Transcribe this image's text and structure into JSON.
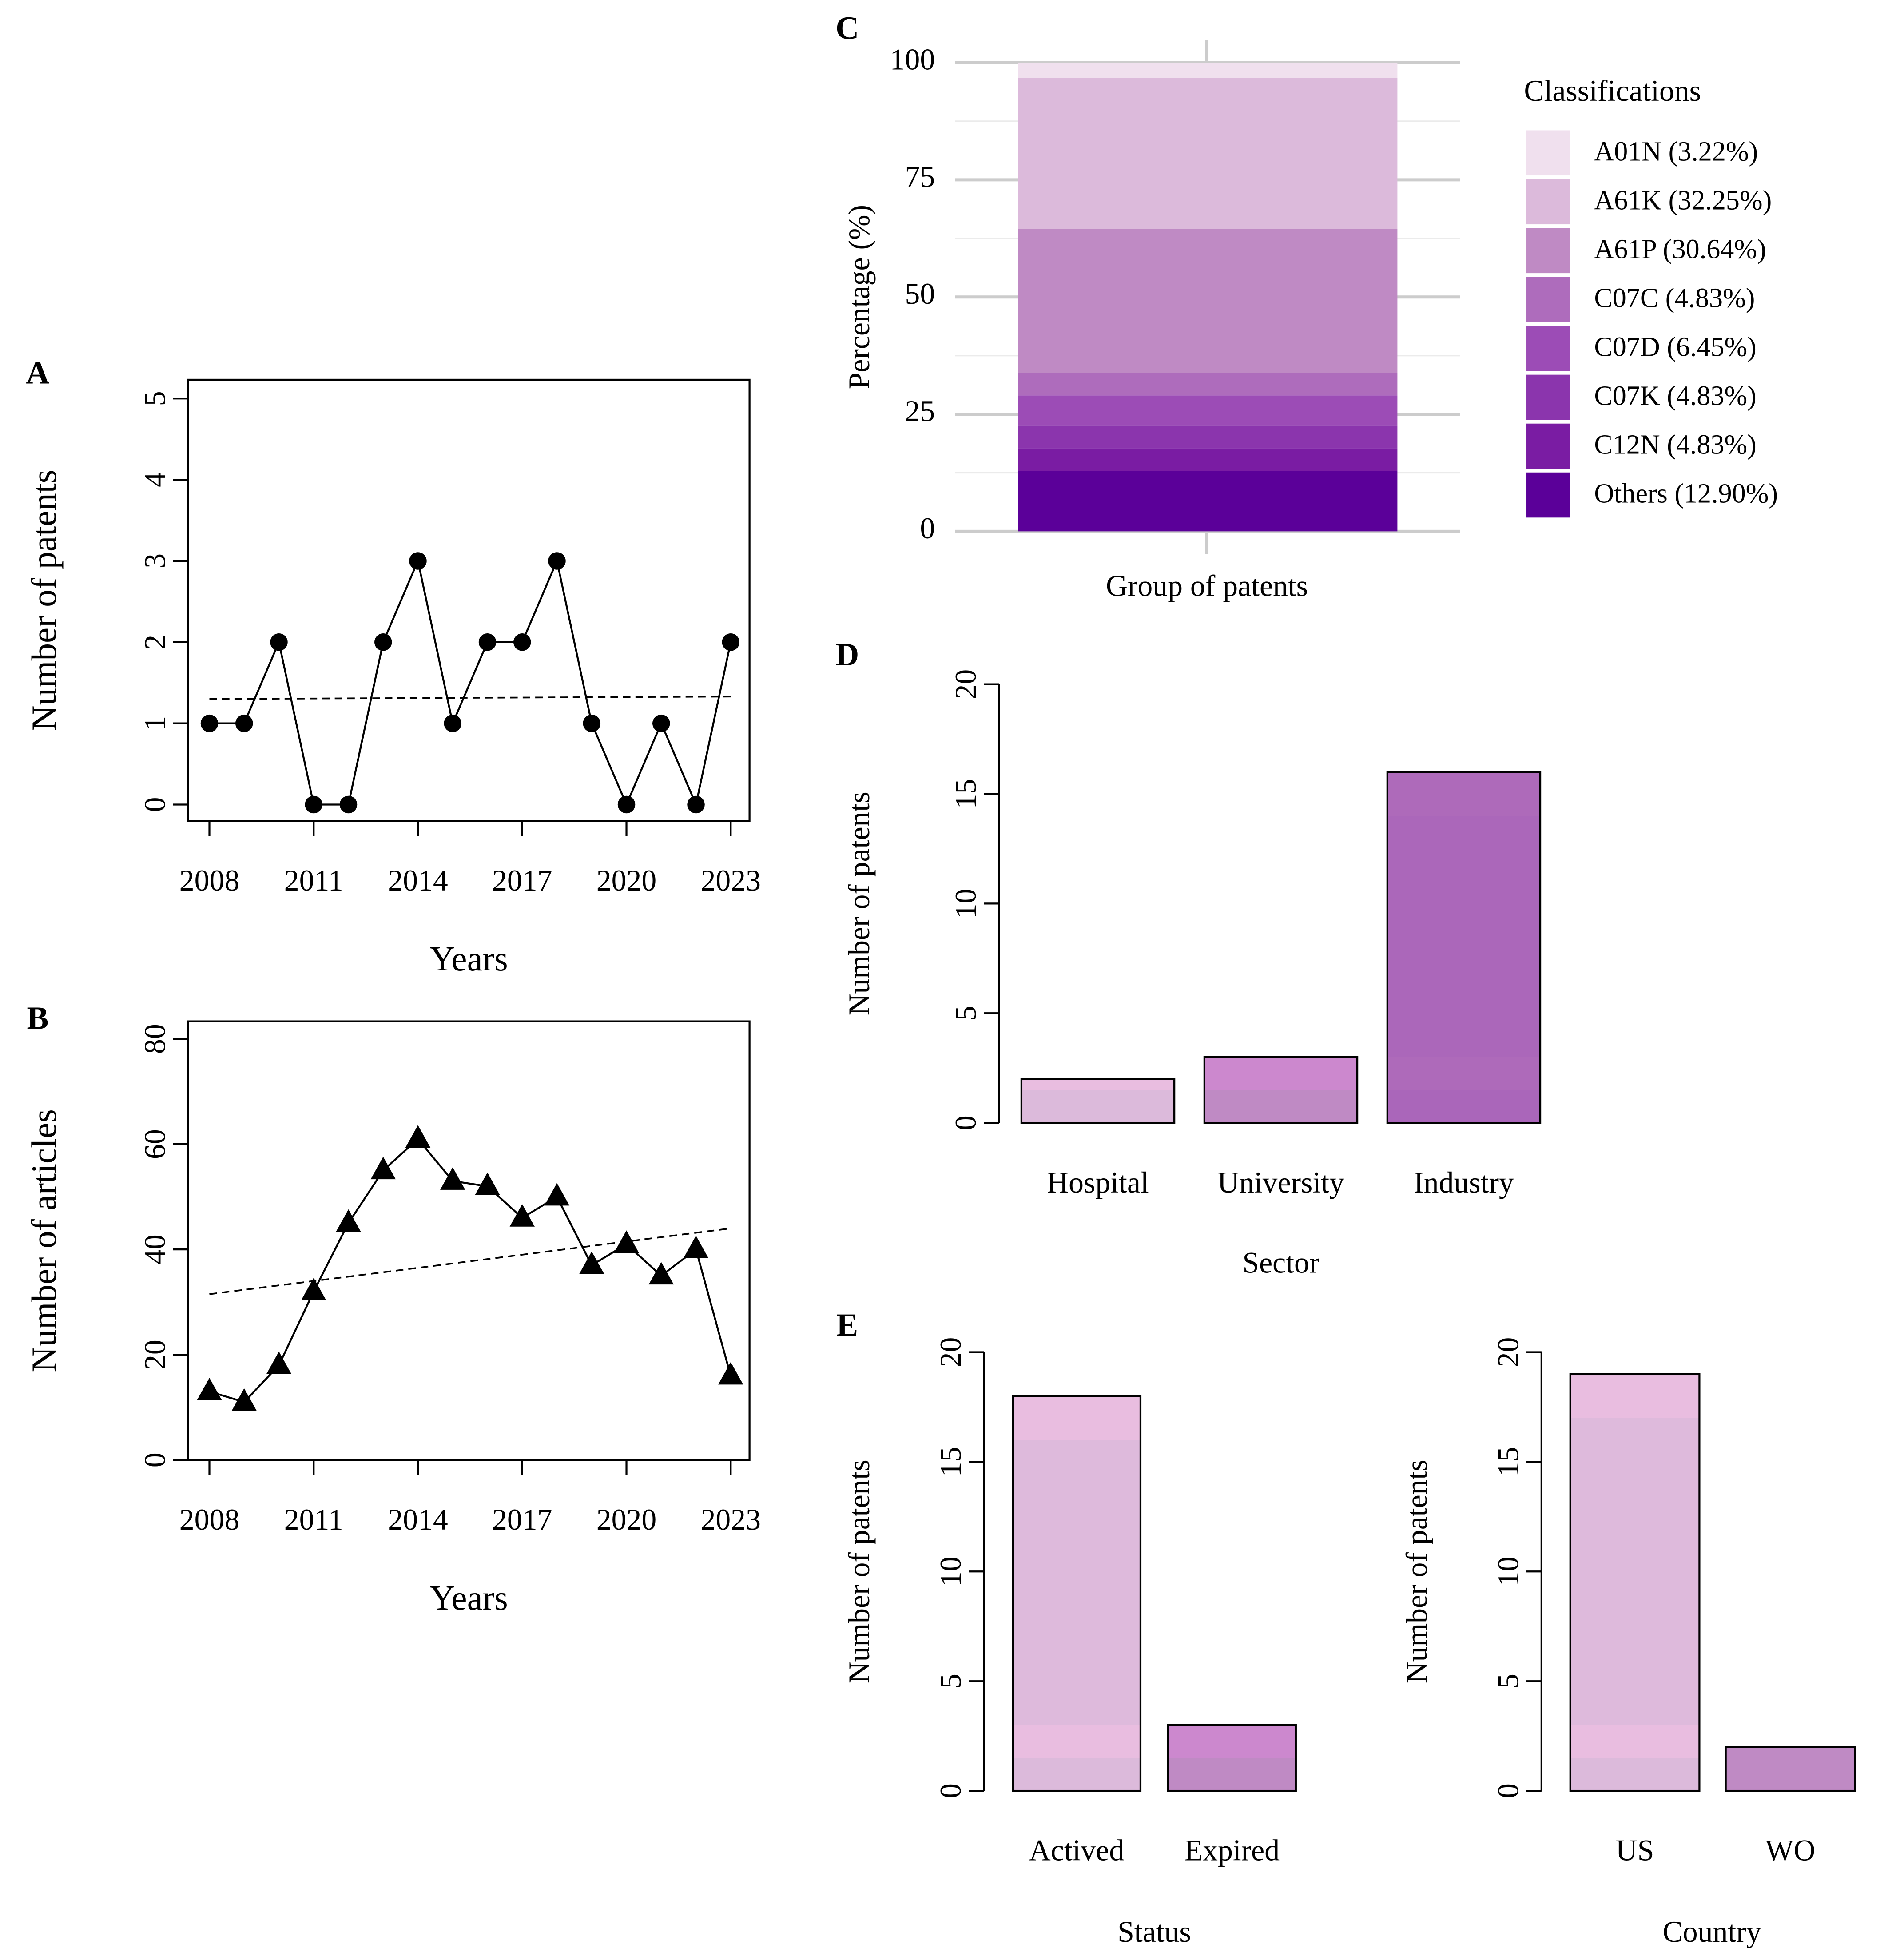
{
  "chart_data": [
    {
      "panel": "A",
      "type": "line",
      "x": [
        2008,
        2009,
        2010,
        2011,
        2012,
        2013,
        2014,
        2015,
        2016,
        2017,
        2018,
        2019,
        2020,
        2021,
        2022,
        2023
      ],
      "values": [
        1,
        1,
        2,
        0,
        0,
        2,
        3,
        1,
        2,
        2,
        3,
        1,
        0,
        1,
        0,
        2
      ],
      "trend": [
        1.3,
        1.33
      ],
      "marker": "circle",
      "xlabel": "Years",
      "ylabel": "Number of patents",
      "ylim": [
        0,
        5
      ],
      "yticks": [
        "0",
        "1",
        "2",
        "3",
        "4",
        "5"
      ],
      "xticks": [
        "2008",
        "2011",
        "2014",
        "2017",
        "2020",
        "2023"
      ]
    },
    {
      "panel": "B",
      "type": "line",
      "x": [
        2008,
        2009,
        2010,
        2011,
        2012,
        2013,
        2014,
        2015,
        2016,
        2017,
        2018,
        2019,
        2020,
        2021,
        2022,
        2023
      ],
      "values": [
        13,
        11,
        18,
        32,
        45,
        55,
        61,
        53,
        52,
        46,
        50,
        37,
        41,
        35,
        40,
        16
      ],
      "trend": [
        31.5,
        44
      ],
      "marker": "triangle",
      "xlabel": "Years",
      "ylabel": "Number of articles",
      "ylim": [
        0,
        80
      ],
      "yticks": [
        "0",
        "20",
        "40",
        "60",
        "80"
      ],
      "xticks": [
        "2008",
        "2011",
        "2014",
        "2017",
        "2020",
        "2023"
      ]
    },
    {
      "panel": "C",
      "type": "bar",
      "stacked": true,
      "xlabel": "Group of patents",
      "ylabel": "Percentage (%)",
      "ylim": [
        0,
        100
      ],
      "yticks": [
        "0",
        "25",
        "50",
        "75",
        "100"
      ],
      "legend_title": "Classifications",
      "legend_position": "right",
      "series": [
        {
          "name": "Others (12.90%)",
          "value": 12.9,
          "color": "#5b0099"
        },
        {
          "name": "C12N (4.83%)",
          "value": 4.83,
          "color": "#7a1ca3"
        },
        {
          "name": "C07K (4.83%)",
          "value": 4.83,
          "color": "#8b35ad"
        },
        {
          "name": "C07D (6.45%)",
          "value": 6.45,
          "color": "#9c4cb6"
        },
        {
          "name": "C07C (4.83%)",
          "value": 4.83,
          "color": "#ae6cbc"
        },
        {
          "name": "A61P (30.64%)",
          "value": 30.64,
          "color": "#bf8ac4"
        },
        {
          "name": "A61K (32.25%)",
          "value": 32.25,
          "color": "#dcbadb"
        },
        {
          "name": "A01N (3.22%)",
          "value": 3.22,
          "color": "#f0e0ee"
        }
      ]
    },
    {
      "panel": "D",
      "type": "bar",
      "xlabel": "Sector",
      "ylabel": "Number of patents",
      "ylim": [
        0,
        20
      ],
      "yticks": [
        "0",
        "5",
        "10",
        "15",
        "20"
      ],
      "categories": [
        "Hospital",
        "University",
        "Industry"
      ],
      "values": [
        2,
        3,
        16
      ],
      "colors": [
        [
          "#dcbadb",
          "#e9bde0"
        ],
        [
          "#bf8ac4",
          "#cc88ce"
        ],
        [
          "#aa66ba",
          "#ae6aba"
        ]
      ]
    },
    {
      "panel": "E",
      "type": "bar",
      "xlabel": "Status",
      "ylabel": "Number of patents",
      "ylim": [
        0,
        20
      ],
      "yticks": [
        "0",
        "5",
        "10",
        "15",
        "20"
      ],
      "categories": [
        "Actived",
        "Expired"
      ],
      "values": [
        18,
        3
      ],
      "colors": [
        [
          "#dcbadb",
          "#e9bde0"
        ],
        [
          "#bf8ac4",
          "#cc88ce"
        ]
      ]
    },
    {
      "panel": "",
      "type": "bar",
      "xlabel": "Country",
      "ylabel": "Number of patents",
      "ylim": [
        0,
        20
      ],
      "yticks": [
        "0",
        "5",
        "10",
        "15",
        "20"
      ],
      "categories": [
        "US",
        "WO"
      ],
      "values": [
        19,
        2
      ],
      "colors": [
        [
          "#dcbadb",
          "#e9bde0"
        ],
        [
          "#bf8ac4",
          "#bf8ac4"
        ]
      ]
    }
  ]
}
